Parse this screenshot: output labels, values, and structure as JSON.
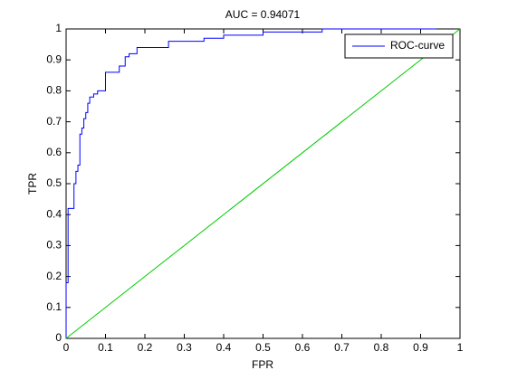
{
  "chart_data": {
    "type": "line",
    "title": "AUC = 0.94071",
    "x_label": "FPR",
    "y_label": "TPR",
    "xlim": [
      0,
      1
    ],
    "ylim": [
      0,
      1
    ],
    "xticks": [
      0,
      0.1,
      0.2,
      0.3,
      0.4,
      0.5,
      0.6,
      0.7,
      0.8,
      0.9,
      1
    ],
    "yticks": [
      0,
      0.1,
      0.2,
      0.3,
      0.4,
      0.5,
      0.6,
      0.7,
      0.8,
      0.9,
      1
    ],
    "grid": false,
    "legend": "northeast",
    "series": [
      {
        "name": "ROC-curve",
        "color": "#0000ff",
        "x": [
          0,
          0,
          0.005,
          0.005,
          0.02,
          0.02,
          0.025,
          0.025,
          0.03,
          0.03,
          0.035,
          0.035,
          0.04,
          0.04,
          0.045,
          0.045,
          0.05,
          0.05,
          0.055,
          0.055,
          0.06,
          0.06,
          0.07,
          0.07,
          0.08,
          0.08,
          0.1,
          0.1,
          0.135,
          0.135,
          0.15,
          0.15,
          0.16,
          0.16,
          0.18,
          0.18,
          0.26,
          0.26,
          0.35,
          0.35,
          0.4,
          0.4,
          0.5,
          0.5,
          0.65,
          0.65,
          0.94
        ],
        "values": [
          0,
          0.18,
          0.18,
          0.42,
          0.42,
          0.5,
          0.5,
          0.54,
          0.54,
          0.56,
          0.56,
          0.66,
          0.66,
          0.68,
          0.68,
          0.71,
          0.71,
          0.73,
          0.73,
          0.76,
          0.76,
          0.78,
          0.78,
          0.79,
          0.79,
          0.8,
          0.8,
          0.86,
          0.86,
          0.88,
          0.88,
          0.91,
          0.91,
          0.92,
          0.92,
          0.94,
          0.94,
          0.96,
          0.96,
          0.97,
          0.97,
          0.98,
          0.98,
          0.99,
          0.99,
          1,
          1
        ]
      },
      {
        "color": "#00cc00",
        "x": [
          0,
          1
        ],
        "values": [
          0,
          1
        ]
      }
    ]
  }
}
